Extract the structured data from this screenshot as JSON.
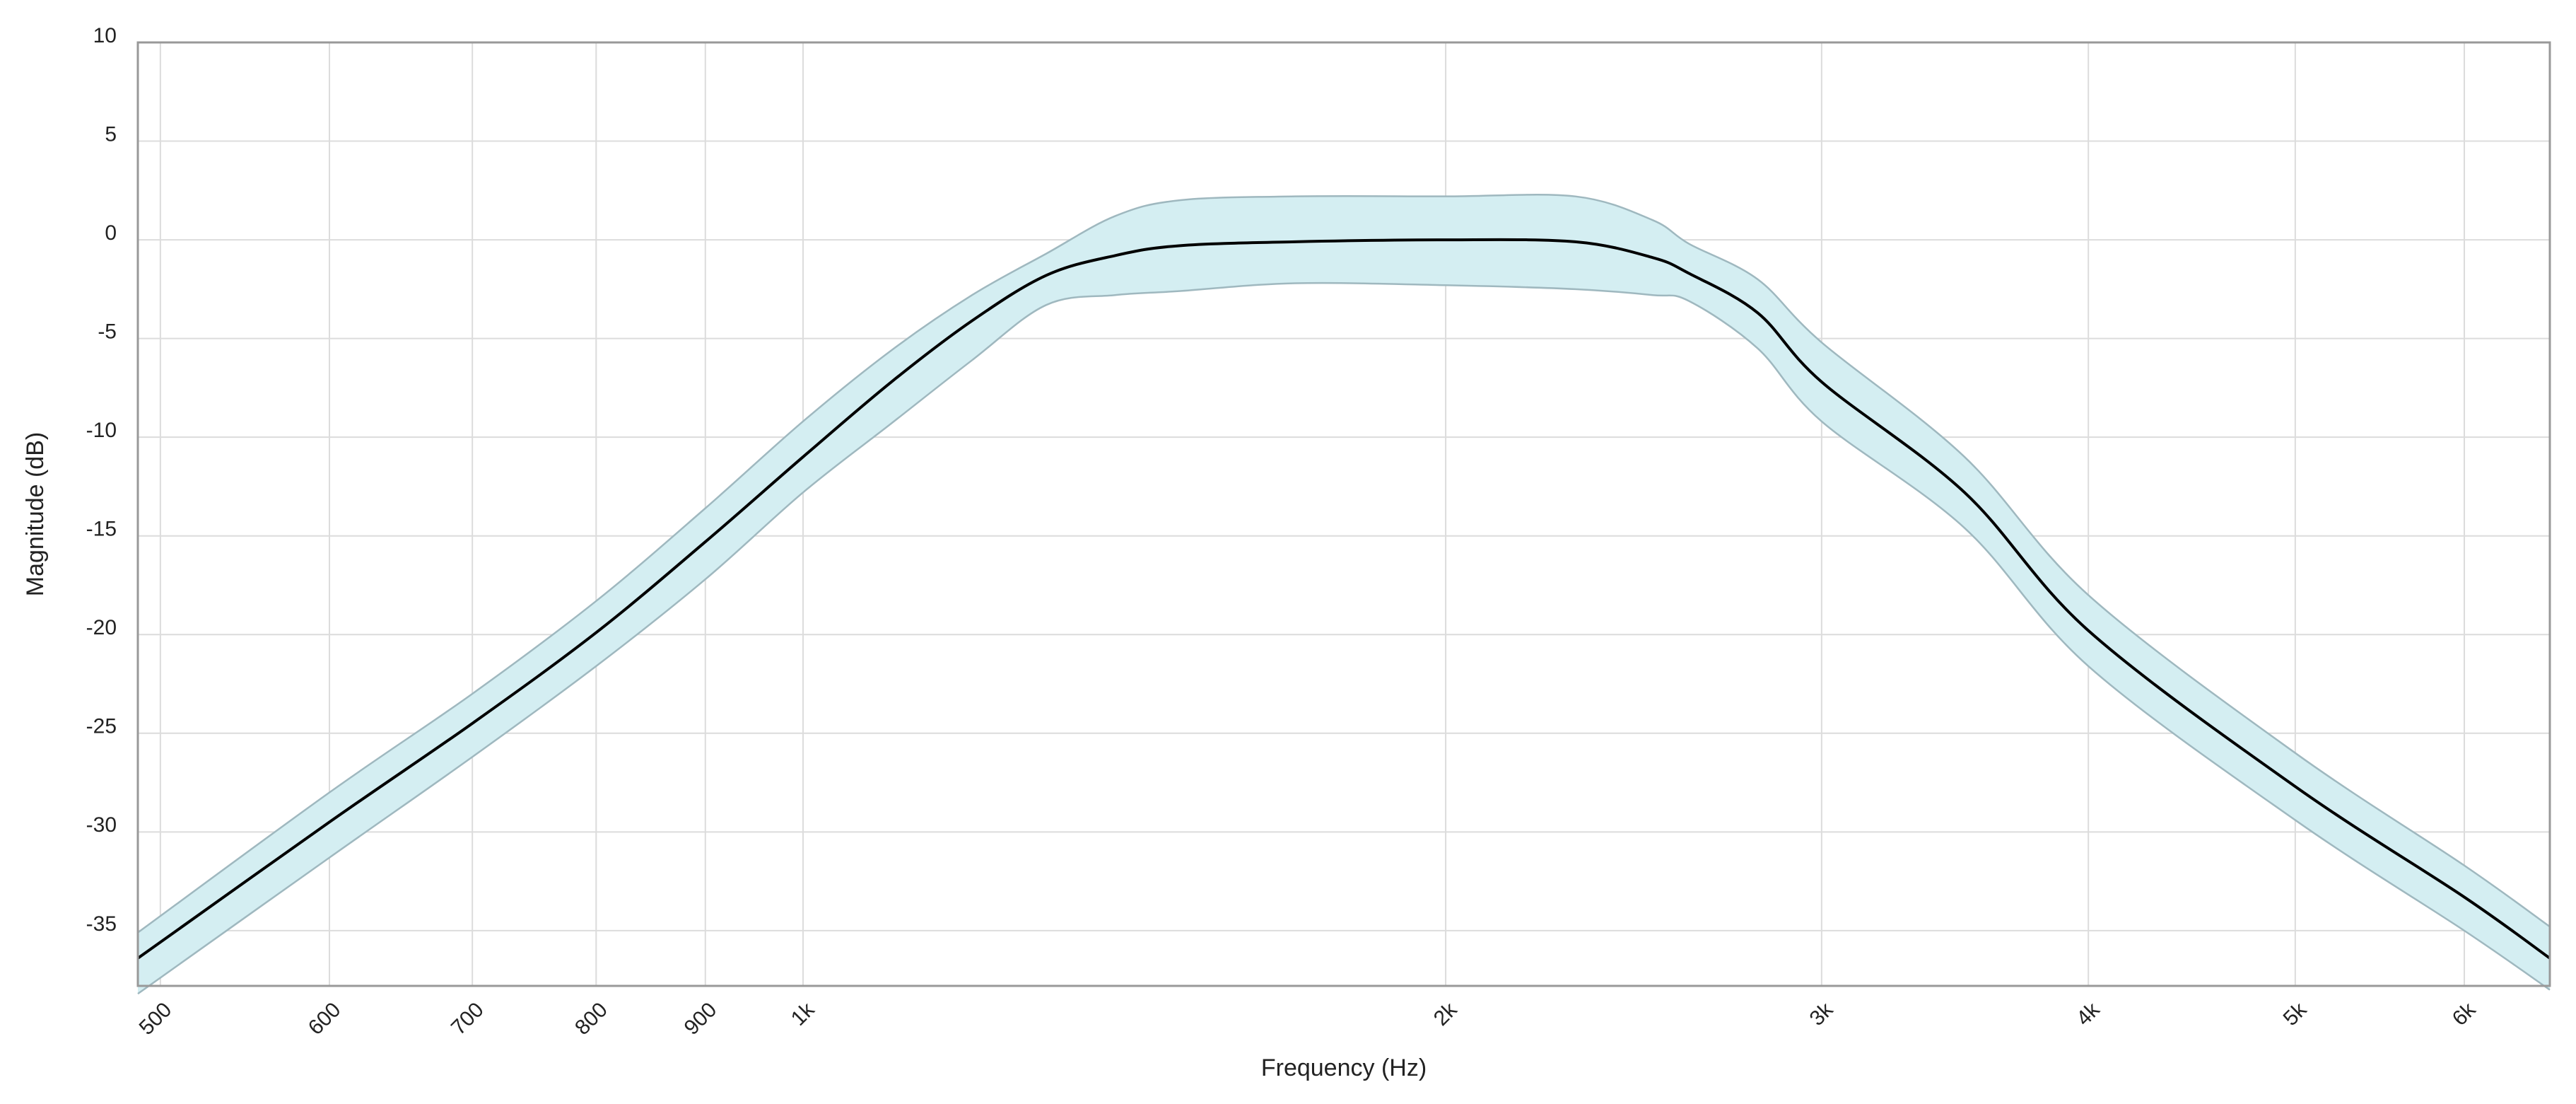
{
  "chart_data": {
    "type": "line",
    "x_label": "Frequency (Hz)",
    "y_label": "Magnitude (dB)",
    "x": [
      488,
      600,
      700,
      800,
      900,
      1000,
      1100,
      1200,
      1300,
      1400,
      1500,
      1700,
      2000,
      2300,
      2500,
      2600,
      2800,
      3000,
      3500,
      4000,
      5000,
      6000,
      6580
    ],
    "series": [
      {
        "color": "#000000",
        "values": [
          -36.4,
          -29.5,
          -24.5,
          -19.9,
          -15.3,
          -11,
          -7.2,
          -4.1,
          -1.8,
          -0.8,
          -0.3,
          -0.1,
          0,
          -0.1,
          -0.9,
          -1.7,
          -3.7,
          -7.2,
          -12.8,
          -19.8,
          -27.7,
          -33.3,
          -36.4
        ]
      }
    ],
    "band": {
      "color": "#d4eef2",
      "edge_color": "#9fb8bf",
      "upper": [
        -35.1,
        -28,
        -23,
        -18.3,
        -13.6,
        -9.2,
        -5.6,
        -2.8,
        -0.7,
        1.2,
        2,
        2.2,
        2.2,
        2.2,
        1,
        -0.2,
        -2,
        -5.2,
        -11,
        -18,
        -26,
        -31.7,
        -34.8
      ],
      "lower": [
        -38.2,
        -31.3,
        -26.2,
        -21.6,
        -17.2,
        -12.8,
        -9.3,
        -6.1,
        -3.3,
        -2.8,
        -2.6,
        -2.2,
        -2.3,
        -2.5,
        -2.8,
        -3.1,
        -5.5,
        -9.2,
        -14.6,
        -21.6,
        -29.4,
        -35,
        -38
      ]
    },
    "xlim": [
      488,
      6580
    ],
    "x_log": true,
    "xticks": [
      500,
      600,
      700,
      800,
      900,
      {
        "value": 1000,
        "label": "1k"
      },
      {
        "value": 2000,
        "label": "2k"
      },
      {
        "value": 3000,
        "label": "3k"
      },
      {
        "value": 4000,
        "label": "4k"
      },
      {
        "value": 5000,
        "label": "5k"
      },
      {
        "value": 6000,
        "label": "6k"
      }
    ],
    "ylim": [
      -37.8,
      10
    ],
    "yticks": [
      10,
      5,
      0,
      -5,
      -10,
      -15,
      -20,
      -25,
      -30,
      -35
    ],
    "grid": true
  }
}
